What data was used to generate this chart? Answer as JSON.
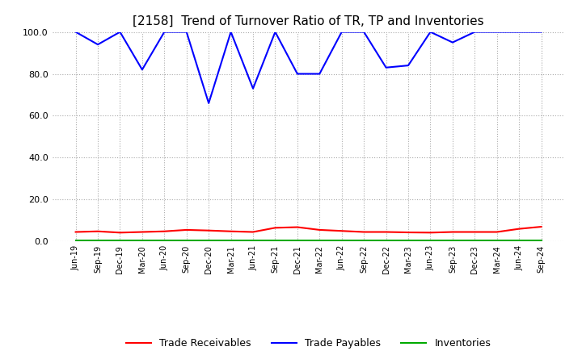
{
  "title": "[2158]  Trend of Turnover Ratio of TR, TP and Inventories",
  "title_fontsize": 11,
  "ylim": [
    0.0,
    100.0
  ],
  "yticks": [
    0.0,
    20.0,
    40.0,
    60.0,
    80.0,
    100.0
  ],
  "x_labels": [
    "Jun-19",
    "Sep-19",
    "Dec-19",
    "Mar-20",
    "Jun-20",
    "Sep-20",
    "Dec-20",
    "Mar-21",
    "Jun-21",
    "Sep-21",
    "Dec-21",
    "Mar-22",
    "Jun-22",
    "Sep-22",
    "Dec-22",
    "Mar-23",
    "Jun-23",
    "Sep-23",
    "Dec-23",
    "Mar-24",
    "Jun-24",
    "Sep-24"
  ],
  "trade_receivables": [
    4.5,
    4.8,
    4.2,
    4.5,
    4.8,
    5.5,
    5.2,
    4.8,
    4.5,
    6.5,
    6.8,
    5.5,
    5.0,
    4.5,
    4.5,
    4.3,
    4.2,
    4.5,
    4.5,
    4.5,
    6.0,
    7.0
  ],
  "trade_payables": [
    100.0,
    94.0,
    100.0,
    82.0,
    100.0,
    100.0,
    66.0,
    100.0,
    73.0,
    100.0,
    80.0,
    80.0,
    100.0,
    100.0,
    83.0,
    84.0,
    100.0,
    95.0,
    100.0,
    100.0,
    100.0,
    100.0
  ],
  "inventories": [
    0.3,
    0.3,
    0.3,
    0.3,
    0.3,
    0.3,
    0.3,
    0.3,
    0.3,
    0.3,
    0.3,
    0.3,
    0.3,
    0.3,
    0.3,
    0.3,
    0.3,
    0.3,
    0.3,
    0.3,
    0.3,
    0.3
  ],
  "tr_color": "#ff0000",
  "tp_color": "#0000ff",
  "inv_color": "#00aa00",
  "background_color": "#ffffff",
  "grid_color": "#aaaaaa",
  "legend_labels": [
    "Trade Receivables",
    "Trade Payables",
    "Inventories"
  ]
}
